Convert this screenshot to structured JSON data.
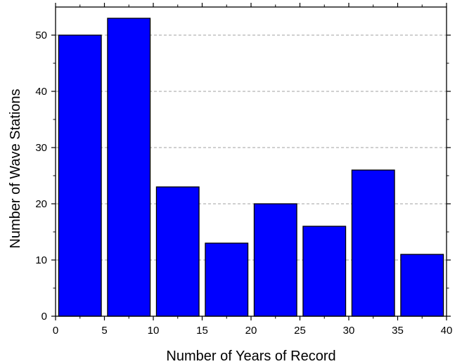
{
  "chart_data": {
    "type": "bar",
    "title": "",
    "xlabel": "Number of Years of Record",
    "ylabel": "Number of Wave Stations",
    "xlim": [
      0,
      40
    ],
    "ylim": [
      0,
      55
    ],
    "x_ticks": [
      0,
      5,
      10,
      15,
      20,
      25,
      30,
      35,
      40
    ],
    "y_ticks": [
      0,
      10,
      20,
      30,
      40,
      50
    ],
    "grid": "horizontal dashed",
    "legend": "none",
    "bin_edges": [
      [
        0,
        5
      ],
      [
        5,
        10
      ],
      [
        10,
        15
      ],
      [
        15,
        20
      ],
      [
        20,
        25
      ],
      [
        25,
        30
      ],
      [
        30,
        35
      ],
      [
        35,
        40
      ]
    ],
    "values": [
      50,
      53,
      23,
      13,
      20,
      16,
      26,
      11
    ],
    "bar_color": "#0000FF",
    "bar_edge_color": "#000000"
  }
}
